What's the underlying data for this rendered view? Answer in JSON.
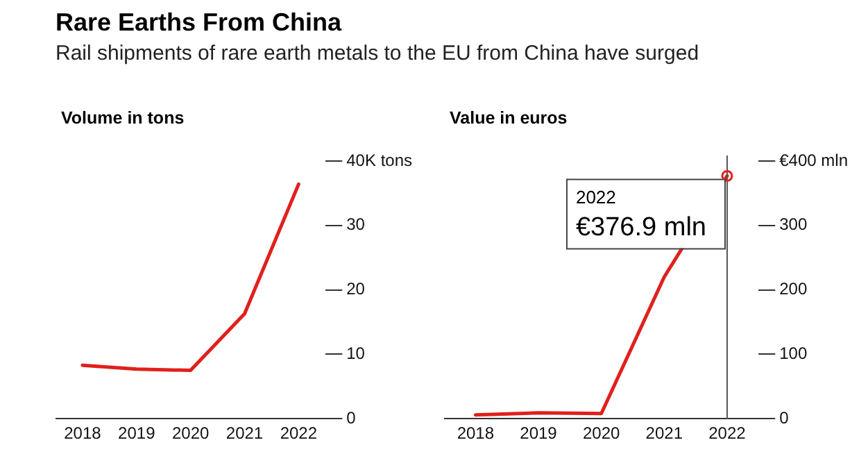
{
  "chart_data": [
    {
      "type": "line",
      "title": "Rare Earths From China",
      "subtitle": "Rail shipments of rare earth metals to the EU from China have surged",
      "ylabel": "Volume in tons",
      "categories": [
        "2018",
        "2019",
        "2020",
        "2021",
        "2022"
      ],
      "series": [
        {
          "color": "#e0201c",
          "values": [
            8.3,
            7.7,
            7.5,
            16.3,
            36.4
          ]
        }
      ],
      "ylim": [
        0,
        40
      ],
      "yticks": [
        0,
        10,
        20,
        30,
        {
          "value": 40,
          "label": "40K tons"
        }
      ],
      "grid": false,
      "legend": false,
      "marker": "none"
    },
    {
      "type": "line",
      "ylabel": "Value in euros",
      "categories": [
        "2018",
        "2019",
        "2020",
        "2021",
        "2022"
      ],
      "series": [
        {
          "color": "#e0201c",
          "values": [
            6,
            9,
            8,
            220,
            376.9
          ]
        }
      ],
      "ylim": [
        0,
        400
      ],
      "yticks": [
        0,
        100,
        200,
        300,
        {
          "value": 400,
          "label": "€400 mln"
        }
      ],
      "grid": false,
      "legend": false,
      "marker": "none",
      "ref_lines": [
        {
          "axis": "x",
          "value": "2022",
          "color": "#555555"
        }
      ],
      "annotations": [
        {
          "text": "2022\n€376.9 mln",
          "x": "2022",
          "y": 376.9
        }
      ]
    }
  ]
}
